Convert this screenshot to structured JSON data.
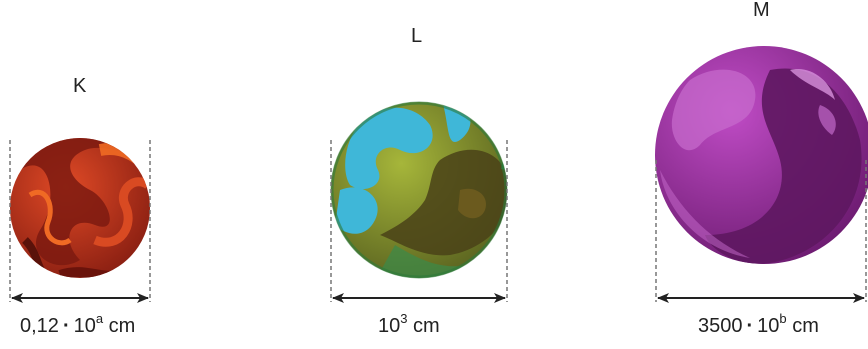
{
  "planets": [
    {
      "label": "K",
      "size_base": "0,12",
      "size_dot": "·",
      "size_power_base": "10",
      "size_exp": "a",
      "size_unit": "cm",
      "name": "planet-k"
    },
    {
      "label": "L",
      "size_base": "",
      "size_dot": "",
      "size_power_base": "10",
      "size_exp": "3",
      "size_unit": "cm",
      "name": "planet-l"
    },
    {
      "label": "M",
      "size_base": "3500",
      "size_dot": "·",
      "size_power_base": "10",
      "size_exp": "b",
      "size_unit": "cm",
      "name": "planet-m"
    }
  ],
  "colors": {
    "k_base": "#c0341d",
    "k_dark": "#7d1a10",
    "k_accent": "#f06a24",
    "l_base": "#8a9a2a",
    "l_dark": "#4a4218",
    "l_water": "#3fb7d8",
    "l_rim": "#2d7a3a",
    "m_base": "#a23aa8",
    "m_dark": "#5e1760",
    "m_light": "#c76ccd",
    "line": "#777777"
  }
}
